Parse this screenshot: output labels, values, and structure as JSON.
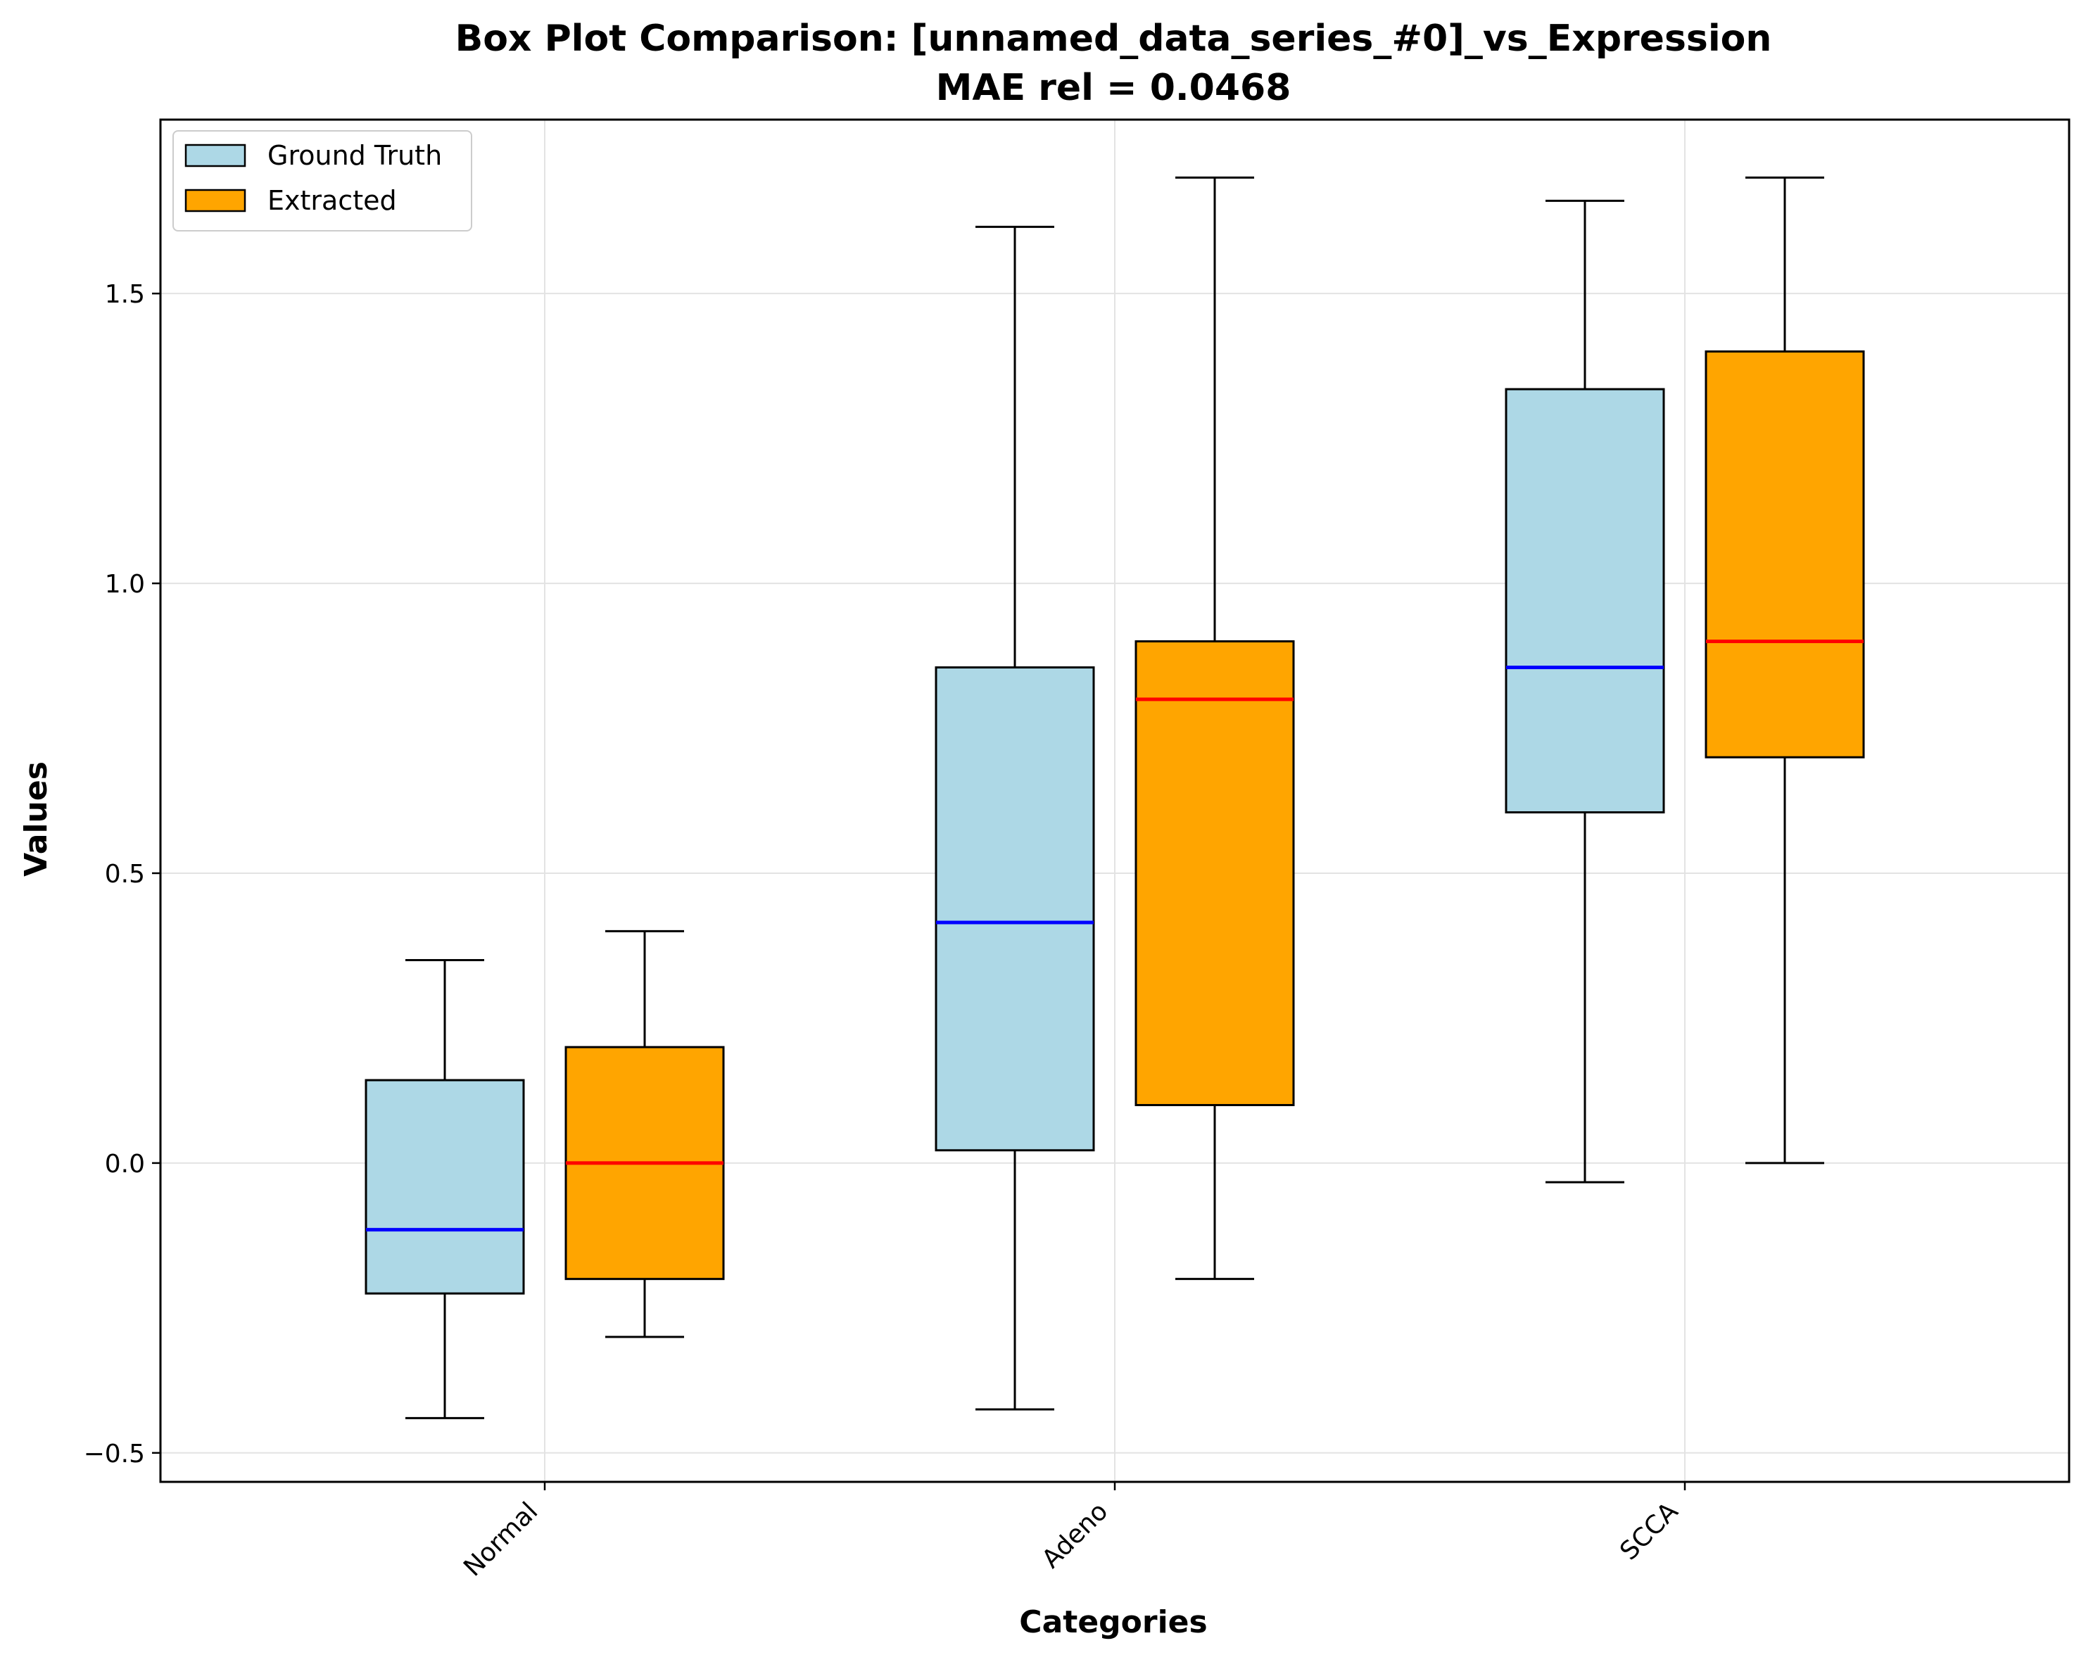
{
  "chart_data": {
    "type": "box",
    "title": "Box Plot Comparison: [unnamed_data_series_#0]_vs_Expression",
    "subtitle": "MAE rel = 0.0468",
    "xlabel": "Categories",
    "ylabel": "Values",
    "categories": [
      "Normal",
      "Adeno",
      "SCCA"
    ],
    "ylim": [
      -0.55,
      1.8
    ],
    "yticks": [
      -0.5,
      0.0,
      0.5,
      1.0,
      1.5
    ],
    "ytick_labels": [
      "−0.5",
      "0.0",
      "0.5",
      "1.0",
      "1.5"
    ],
    "grid": true,
    "legend_position": "upper-left",
    "series": [
      {
        "name": "Ground Truth",
        "box_color": "#add8e6",
        "median_color": "#0000ff",
        "boxes": [
          {
            "category": "Normal",
            "whisker_low": -0.44,
            "q1": -0.225,
            "median": -0.115,
            "q3": 0.143,
            "whisker_high": 0.35
          },
          {
            "category": "Adeno",
            "whisker_low": -0.425,
            "q1": 0.022,
            "median": 0.415,
            "q3": 0.855,
            "whisker_high": 1.615
          },
          {
            "category": "SCCA",
            "whisker_low": -0.033,
            "q1": 0.605,
            "median": 0.855,
            "q3": 1.335,
            "whisker_high": 1.66
          }
        ]
      },
      {
        "name": "Extracted",
        "box_color": "#ffa500",
        "median_color": "#ff0000",
        "boxes": [
          {
            "category": "Normal",
            "whisker_low": -0.3,
            "q1": -0.2,
            "median": 0.0,
            "q3": 0.2,
            "whisker_high": 0.4
          },
          {
            "category": "Adeno",
            "whisker_low": -0.2,
            "q1": 0.1,
            "median": 0.8,
            "q3": 0.9,
            "whisker_high": 1.7
          },
          {
            "category": "SCCA",
            "whisker_low": 0.0,
            "q1": 0.7,
            "median": 0.9,
            "q3": 1.4,
            "whisker_high": 1.7
          }
        ]
      }
    ]
  }
}
